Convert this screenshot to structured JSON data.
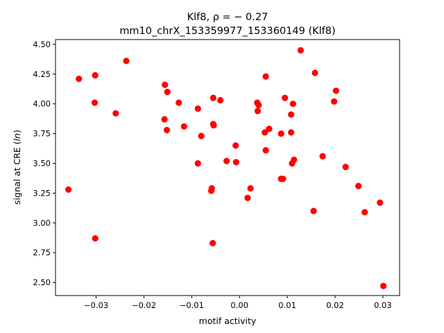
{
  "chart_data": {
    "type": "scatter",
    "title_line1": "Klf8, ρ = − 0.27",
    "title_line2": "mm10_chrX_153359977_153360149 (Klf8)",
    "xlabel": "motif activity",
    "ylabel": "signal at CRE (ln)",
    "xlim": [
      -0.0385,
      0.0335
    ],
    "ylim": [
      2.39,
      4.54
    ],
    "xticks": [
      -0.03,
      -0.02,
      -0.01,
      0.0,
      0.01,
      0.02,
      0.03
    ],
    "xtick_labels": [
      "−0.03",
      "−0.02",
      "−0.01",
      "0.00",
      "0.01",
      "0.02",
      "0.03"
    ],
    "yticks": [
      2.5,
      2.75,
      3.0,
      3.25,
      3.5,
      3.75,
      4.0,
      4.25,
      4.5
    ],
    "ytick_labels": [
      "2.50",
      "2.75",
      "3.00",
      "3.25",
      "3.50",
      "3.75",
      "4.00",
      "4.25",
      "4.50"
    ],
    "grid": false,
    "marker_color": "#ff0000",
    "points": [
      {
        "x": -0.0358,
        "y": 3.28
      },
      {
        "x": -0.0336,
        "y": 4.21
      },
      {
        "x": -0.0302,
        "y": 4.24
      },
      {
        "x": -0.0303,
        "y": 4.01
      },
      {
        "x": -0.0302,
        "y": 2.87
      },
      {
        "x": -0.0259,
        "y": 3.92
      },
      {
        "x": -0.0237,
        "y": 4.36
      },
      {
        "x": -0.0156,
        "y": 4.16
      },
      {
        "x": -0.0151,
        "y": 4.1
      },
      {
        "x": -0.0157,
        "y": 3.87
      },
      {
        "x": -0.0152,
        "y": 3.78
      },
      {
        "x": -0.0127,
        "y": 4.01
      },
      {
        "x": -0.0116,
        "y": 3.81
      },
      {
        "x": -0.0087,
        "y": 3.96
      },
      {
        "x": -0.008,
        "y": 3.73
      },
      {
        "x": -0.0087,
        "y": 3.5
      },
      {
        "x": -0.0055,
        "y": 4.05
      },
      {
        "x": -0.0055,
        "y": 3.83
      },
      {
        "x": -0.0054,
        "y": 3.82
      },
      {
        "x": -0.004,
        "y": 4.03
      },
      {
        "x": -0.0058,
        "y": 3.29
      },
      {
        "x": -0.0059,
        "y": 3.27
      },
      {
        "x": -0.0056,
        "y": 2.83
      },
      {
        "x": -0.0027,
        "y": 3.52
      },
      {
        "x": -0.0008,
        "y": 3.65
      },
      {
        "x": -0.0007,
        "y": 3.51
      },
      {
        "x": 0.0017,
        "y": 3.21
      },
      {
        "x": 0.0023,
        "y": 3.29
      },
      {
        "x": 0.0037,
        "y": 4.01
      },
      {
        "x": 0.004,
        "y": 3.99
      },
      {
        "x": 0.0038,
        "y": 3.94
      },
      {
        "x": 0.0055,
        "y": 4.23
      },
      {
        "x": 0.0053,
        "y": 3.76
      },
      {
        "x": 0.0062,
        "y": 3.79
      },
      {
        "x": 0.0055,
        "y": 3.61
      },
      {
        "x": 0.0087,
        "y": 3.75
      },
      {
        "x": 0.0087,
        "y": 3.37
      },
      {
        "x": 0.0091,
        "y": 3.37
      },
      {
        "x": 0.0095,
        "y": 4.05
      },
      {
        "x": 0.0108,
        "y": 3.91
      },
      {
        "x": 0.0108,
        "y": 3.76
      },
      {
        "x": 0.0112,
        "y": 4.0
      },
      {
        "x": 0.011,
        "y": 3.5
      },
      {
        "x": 0.0114,
        "y": 3.53
      },
      {
        "x": 0.0128,
        "y": 4.45
      },
      {
        "x": 0.0155,
        "y": 3.1
      },
      {
        "x": 0.0158,
        "y": 4.26
      },
      {
        "x": 0.0174,
        "y": 3.56
      },
      {
        "x": 0.0198,
        "y": 4.02
      },
      {
        "x": 0.0202,
        "y": 4.11
      },
      {
        "x": 0.0222,
        "y": 3.47
      },
      {
        "x": 0.0249,
        "y": 3.31
      },
      {
        "x": 0.0262,
        "y": 3.09
      },
      {
        "x": 0.0294,
        "y": 3.17
      },
      {
        "x": 0.0301,
        "y": 2.47
      }
    ]
  }
}
